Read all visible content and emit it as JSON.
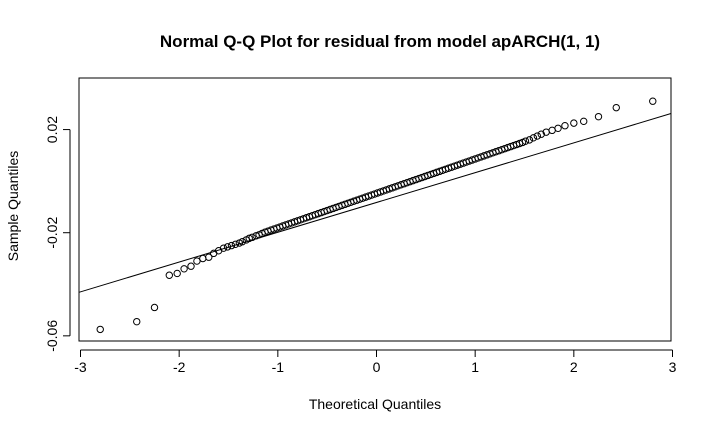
{
  "chart_data": {
    "type": "scatter",
    "title": "Normal Q-Q Plot for residual from model apARCH(1, 1)",
    "xlabel": "Theoretical Quantiles",
    "ylabel": "Sample Quantiles",
    "xlim": [
      -3.0,
      3.0
    ],
    "ylim": [
      -0.062,
      0.04
    ],
    "x_ticks": [
      -3,
      -2,
      -1,
      0,
      1,
      2,
      3
    ],
    "x_tick_labels": [
      "-3",
      "-2",
      "-1",
      "0",
      "1",
      "2",
      "3"
    ],
    "y_ticks": [
      -0.06,
      -0.02,
      0.02
    ],
    "y_tick_labels": [
      "-0.06",
      "-0.02",
      "0.02"
    ],
    "grid": false,
    "legend": "none",
    "reference_line": {
      "x": [
        -3.0,
        3.0
      ],
      "y": [
        -0.043,
        0.026
      ]
    },
    "points": {
      "x": [
        -2.8,
        -2.43,
        -2.25,
        -2.1,
        -2.02,
        -1.95,
        -1.88,
        -1.82,
        -1.76,
        -1.7,
        -1.65,
        -1.6,
        -1.55,
        -1.51,
        -1.47,
        -1.43,
        -1.39,
        -1.36,
        -1.32,
        -1.29,
        -1.26,
        -1.22,
        -1.19,
        -1.16,
        -1.13,
        -1.1,
        -1.07,
        -1.04,
        -1.01,
        -0.98,
        -0.95,
        -0.92,
        -0.89,
        -0.86,
        -0.83,
        -0.8,
        -0.77,
        -0.74,
        -0.71,
        -0.68,
        -0.65,
        -0.62,
        -0.59,
        -0.56,
        -0.53,
        -0.5,
        -0.47,
        -0.44,
        -0.41,
        -0.38,
        -0.35,
        -0.32,
        -0.29,
        -0.26,
        -0.23,
        -0.2,
        -0.17,
        -0.14,
        -0.11,
        -0.08,
        -0.05,
        -0.02,
        0.01,
        0.04,
        0.07,
        0.1,
        0.13,
        0.16,
        0.19,
        0.22,
        0.25,
        0.28,
        0.31,
        0.34,
        0.37,
        0.4,
        0.43,
        0.46,
        0.49,
        0.52,
        0.55,
        0.58,
        0.61,
        0.64,
        0.67,
        0.7,
        0.73,
        0.76,
        0.79,
        0.82,
        0.85,
        0.88,
        0.91,
        0.94,
        0.97,
        1.0,
        1.03,
        1.06,
        1.09,
        1.12,
        1.15,
        1.18,
        1.21,
        1.24,
        1.27,
        1.3,
        1.33,
        1.36,
        1.39,
        1.42,
        1.45,
        1.48,
        1.51,
        1.55,
        1.59,
        1.63,
        1.67,
        1.72,
        1.78,
        1.84,
        1.91,
        2.0,
        2.1,
        2.25,
        2.43,
        2.8
      ],
      "y": [
        -0.0575,
        -0.0545,
        -0.049,
        -0.0365,
        -0.0358,
        -0.034,
        -0.033,
        -0.031,
        -0.03,
        -0.0295,
        -0.028,
        -0.027,
        -0.026,
        -0.0255,
        -0.025,
        -0.0245,
        -0.024,
        -0.0235,
        -0.0228,
        -0.0222,
        -0.0218,
        -0.0212,
        -0.0208,
        -0.0203,
        -0.0198,
        -0.0194,
        -0.019,
        -0.0186,
        -0.0182,
        -0.0178,
        -0.0174,
        -0.017,
        -0.0166,
        -0.0162,
        -0.0158,
        -0.0154,
        -0.015,
        -0.0146,
        -0.0142,
        -0.0138,
        -0.0134,
        -0.013,
        -0.0126,
        -0.0122,
        -0.0118,
        -0.0114,
        -0.011,
        -0.0106,
        -0.0102,
        -0.0098,
        -0.0094,
        -0.009,
        -0.0086,
        -0.0082,
        -0.0078,
        -0.0074,
        -0.007,
        -0.0066,
        -0.0062,
        -0.0058,
        -0.0054,
        -0.005,
        -0.0046,
        -0.0042,
        -0.0038,
        -0.0034,
        -0.003,
        -0.0026,
        -0.0022,
        -0.0018,
        -0.0014,
        -0.001,
        -0.0006,
        -0.0002,
        0.0002,
        0.0006,
        0.001,
        0.0014,
        0.0018,
        0.0022,
        0.0026,
        0.003,
        0.0034,
        0.0038,
        0.0042,
        0.0046,
        0.005,
        0.0054,
        0.0058,
        0.0062,
        0.0066,
        0.007,
        0.0074,
        0.0078,
        0.0082,
        0.0086,
        0.009,
        0.0094,
        0.0098,
        0.0102,
        0.0106,
        0.011,
        0.0114,
        0.0118,
        0.0122,
        0.0126,
        0.013,
        0.0134,
        0.0138,
        0.0142,
        0.0146,
        0.015,
        0.0155,
        0.016,
        0.0168,
        0.0175,
        0.0182,
        0.019,
        0.0197,
        0.0205,
        0.0215,
        0.0225,
        0.0232,
        0.025,
        0.0285,
        0.031
      ]
    }
  }
}
